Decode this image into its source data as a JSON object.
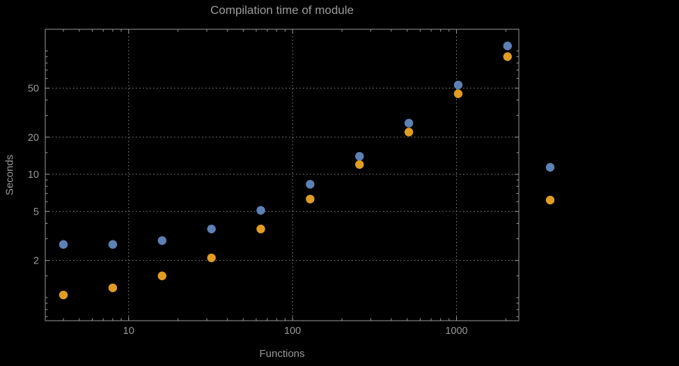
{
  "chart_data": {
    "type": "scatter",
    "title": "Compilation time of module",
    "xlabel": "Functions",
    "ylabel": "Seconds",
    "x_scale": "log",
    "y_scale": "log",
    "xlim": [
      3.1,
      2400
    ],
    "ylim": [
      0.65,
      150
    ],
    "x": [
      4,
      8,
      16,
      32,
      64,
      128,
      256,
      512,
      1024,
      2048
    ],
    "series": [
      {
        "name": "series-1",
        "color": "#5E81B5",
        "values": [
          2.7,
          2.7,
          2.9,
          3.6,
          5.1,
          8.3,
          14,
          26,
          53,
          110
        ]
      },
      {
        "name": "series-2",
        "color": "#E19C24",
        "values": [
          1.05,
          1.2,
          1.5,
          2.1,
          3.6,
          6.3,
          12,
          22,
          45,
          90
        ]
      }
    ],
    "x_ticks": [
      {
        "value": 10,
        "label": "10"
      },
      {
        "value": 100,
        "label": "100"
      },
      {
        "value": 1000,
        "label": "1000"
      }
    ],
    "y_ticks": [
      {
        "value": 2,
        "label": "2"
      },
      {
        "value": 5,
        "label": "5"
      },
      {
        "value": 10,
        "label": "10"
      },
      {
        "value": 20,
        "label": "20"
      },
      {
        "value": 50,
        "label": "50"
      }
    ],
    "x_minor_ticks": [
      4,
      5,
      6,
      7,
      8,
      9,
      20,
      30,
      40,
      50,
      60,
      70,
      80,
      90,
      200,
      300,
      400,
      500,
      600,
      700,
      800,
      900,
      2000
    ],
    "y_minor_ticks": [
      0.7,
      0.8,
      0.9,
      1,
      1.5,
      3,
      4,
      6,
      7,
      8,
      9,
      15,
      30,
      40,
      60,
      70,
      80,
      90,
      100
    ],
    "x_gridlines": [
      10,
      100,
      1000
    ],
    "y_gridlines": [
      2,
      5,
      10,
      20,
      50
    ],
    "grid": true,
    "legend_position": "right",
    "colors": {
      "background": "#000000",
      "frame": "#9a9a9a",
      "grid": "#8a8a8a",
      "text": "#999999"
    }
  }
}
